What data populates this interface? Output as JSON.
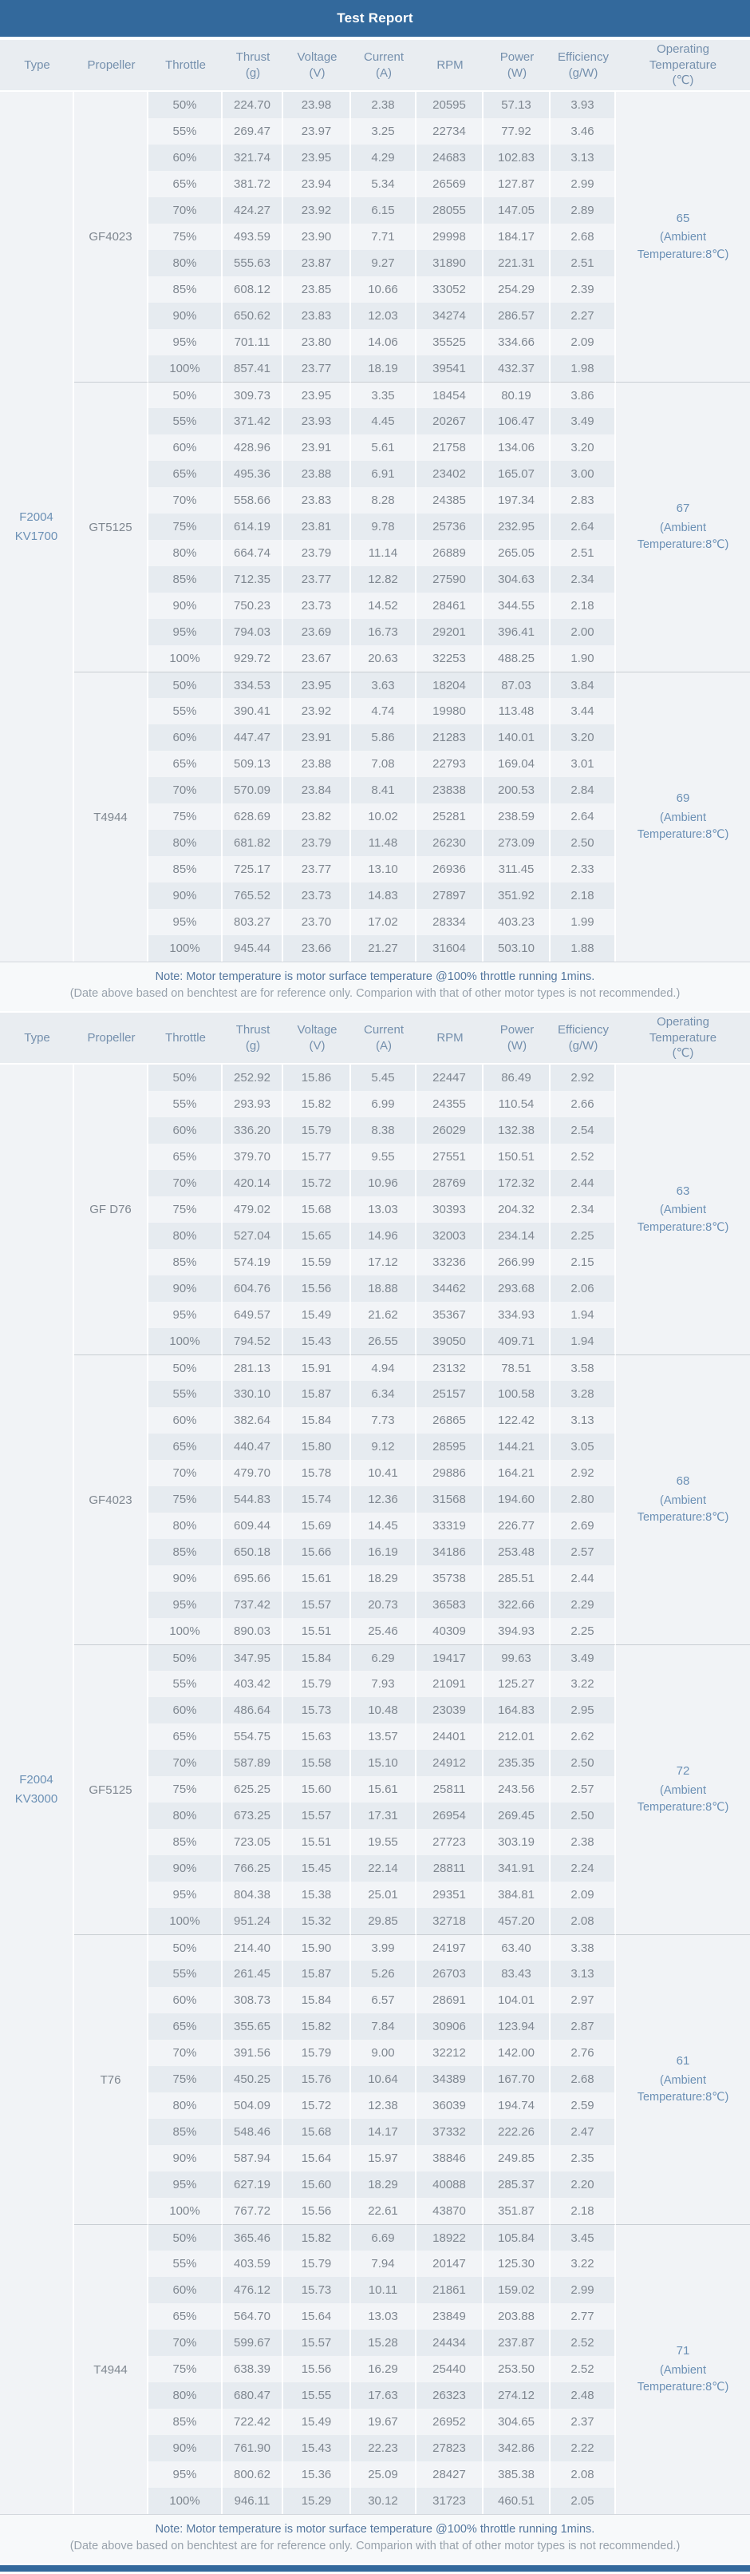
{
  "title": "Test Report",
  "colors": {
    "header_blue": "#33699c",
    "column_header_bg": "#e9edf1",
    "column_header_text": "#7590ad",
    "row_dark": "#e6ebf0",
    "row_light": "#f2f4f7",
    "merged_cell_bg": "#f1f3f6",
    "data_text": "#7f8790",
    "accent_text": "#6b90b5",
    "note_text": "#54779e"
  },
  "columns": [
    "Type",
    "Propeller",
    "Throttle",
    "Thrust\n(g)",
    "Voltage\n(V)",
    "Current\n(A)",
    "RPM",
    "Power\n(W)",
    "Efficiency\n(g/W)",
    "Operating\nTemperature\n(℃)"
  ],
  "note": {
    "line1": "Note: Motor temperature is motor surface temperature @100% throttle running 1mins.",
    "line2": "(Date above based on benchtest are for reference only. Comparion with that of other motor types is not recommended.)"
  },
  "tables": [
    {
      "type": "F2004 KV1700",
      "groups": [
        {
          "propeller": "GF4023",
          "temperature": "65",
          "ambient": "(Ambient Temperature:8℃)",
          "rows": [
            [
              "50%",
              "224.70",
              "23.98",
              "2.38",
              "20595",
              "57.13",
              "3.93"
            ],
            [
              "55%",
              "269.47",
              "23.97",
              "3.25",
              "22734",
              "77.92",
              "3.46"
            ],
            [
              "60%",
              "321.74",
              "23.95",
              "4.29",
              "24683",
              "102.83",
              "3.13"
            ],
            [
              "65%",
              "381.72",
              "23.94",
              "5.34",
              "26569",
              "127.87",
              "2.99"
            ],
            [
              "70%",
              "424.27",
              "23.92",
              "6.15",
              "28055",
              "147.05",
              "2.89"
            ],
            [
              "75%",
              "493.59",
              "23.90",
              "7.71",
              "29998",
              "184.17",
              "2.68"
            ],
            [
              "80%",
              "555.63",
              "23.87",
              "9.27",
              "31890",
              "221.31",
              "2.51"
            ],
            [
              "85%",
              "608.12",
              "23.85",
              "10.66",
              "33052",
              "254.29",
              "2.39"
            ],
            [
              "90%",
              "650.62",
              "23.83",
              "12.03",
              "34274",
              "286.57",
              "2.27"
            ],
            [
              "95%",
              "701.11",
              "23.80",
              "14.06",
              "35525",
              "334.66",
              "2.09"
            ],
            [
              "100%",
              "857.41",
              "23.77",
              "18.19",
              "39541",
              "432.37",
              "1.98"
            ]
          ]
        },
        {
          "propeller": "GT5125",
          "temperature": "67",
          "ambient": "(Ambient Temperature:8℃)",
          "rows": [
            [
              "50%",
              "309.73",
              "23.95",
              "3.35",
              "18454",
              "80.19",
              "3.86"
            ],
            [
              "55%",
              "371.42",
              "23.93",
              "4.45",
              "20267",
              "106.47",
              "3.49"
            ],
            [
              "60%",
              "428.96",
              "23.91",
              "5.61",
              "21758",
              "134.06",
              "3.20"
            ],
            [
              "65%",
              "495.36",
              "23.88",
              "6.91",
              "23402",
              "165.07",
              "3.00"
            ],
            [
              "70%",
              "558.66",
              "23.83",
              "8.28",
              "24385",
              "197.34",
              "2.83"
            ],
            [
              "75%",
              "614.19",
              "23.81",
              "9.78",
              "25736",
              "232.95",
              "2.64"
            ],
            [
              "80%",
              "664.74",
              "23.79",
              "11.14",
              "26889",
              "265.05",
              "2.51"
            ],
            [
              "85%",
              "712.35",
              "23.77",
              "12.82",
              "27590",
              "304.63",
              "2.34"
            ],
            [
              "90%",
              "750.23",
              "23.73",
              "14.52",
              "28461",
              "344.55",
              "2.18"
            ],
            [
              "95%",
              "794.03",
              "23.69",
              "16.73",
              "29201",
              "396.41",
              "2.00"
            ],
            [
              "100%",
              "929.72",
              "23.67",
              "20.63",
              "32253",
              "488.25",
              "1.90"
            ]
          ]
        },
        {
          "propeller": "T4944",
          "temperature": "69",
          "ambient": "(Ambient Temperature:8℃)",
          "rows": [
            [
              "50%",
              "334.53",
              "23.95",
              "3.63",
              "18204",
              "87.03",
              "3.84"
            ],
            [
              "55%",
              "390.41",
              "23.92",
              "4.74",
              "19980",
              "113.48",
              "3.44"
            ],
            [
              "60%",
              "447.47",
              "23.91",
              "5.86",
              "21283",
              "140.01",
              "3.20"
            ],
            [
              "65%",
              "509.13",
              "23.88",
              "7.08",
              "22793",
              "169.04",
              "3.01"
            ],
            [
              "70%",
              "570.09",
              "23.84",
              "8.41",
              "23838",
              "200.53",
              "2.84"
            ],
            [
              "75%",
              "628.69",
              "23.82",
              "10.02",
              "25281",
              "238.59",
              "2.64"
            ],
            [
              "80%",
              "681.82",
              "23.79",
              "11.48",
              "26230",
              "273.09",
              "2.50"
            ],
            [
              "85%",
              "725.17",
              "23.77",
              "13.10",
              "26936",
              "311.45",
              "2.33"
            ],
            [
              "90%",
              "765.52",
              "23.73",
              "14.83",
              "27897",
              "351.92",
              "2.18"
            ],
            [
              "95%",
              "803.27",
              "23.70",
              "17.02",
              "28334",
              "403.23",
              "1.99"
            ],
            [
              "100%",
              "945.44",
              "23.66",
              "21.27",
              "31604",
              "503.10",
              "1.88"
            ]
          ]
        }
      ]
    },
    {
      "type": "F2004 KV3000",
      "groups": [
        {
          "propeller": "GF D76",
          "temperature": "63",
          "ambient": "(Ambient Temperature:8℃)",
          "rows": [
            [
              "50%",
              "252.92",
              "15.86",
              "5.45",
              "22447",
              "86.49",
              "2.92"
            ],
            [
              "55%",
              "293.93",
              "15.82",
              "6.99",
              "24355",
              "110.54",
              "2.66"
            ],
            [
              "60%",
              "336.20",
              "15.79",
              "8.38",
              "26029",
              "132.38",
              "2.54"
            ],
            [
              "65%",
              "379.70",
              "15.77",
              "9.55",
              "27551",
              "150.51",
              "2.52"
            ],
            [
              "70%",
              "420.14",
              "15.72",
              "10.96",
              "28769",
              "172.32",
              "2.44"
            ],
            [
              "75%",
              "479.02",
              "15.68",
              "13.03",
              "30393",
              "204.32",
              "2.34"
            ],
            [
              "80%",
              "527.04",
              "15.65",
              "14.96",
              "32003",
              "234.14",
              "2.25"
            ],
            [
              "85%",
              "574.19",
              "15.59",
              "17.12",
              "33236",
              "266.99",
              "2.15"
            ],
            [
              "90%",
              "604.76",
              "15.56",
              "18.88",
              "34462",
              "293.68",
              "2.06"
            ],
            [
              "95%",
              "649.57",
              "15.49",
              "21.62",
              "35367",
              "334.93",
              "1.94"
            ],
            [
              "100%",
              "794.52",
              "15.43",
              "26.55",
              "39050",
              "409.71",
              "1.94"
            ]
          ]
        },
        {
          "propeller": "GF4023",
          "temperature": "68",
          "ambient": "(Ambient Temperature:8℃)",
          "rows": [
            [
              "50%",
              "281.13",
              "15.91",
              "4.94",
              "23132",
              "78.51",
              "3.58"
            ],
            [
              "55%",
              "330.10",
              "15.87",
              "6.34",
              "25157",
              "100.58",
              "3.28"
            ],
            [
              "60%",
              "382.64",
              "15.84",
              "7.73",
              "26865",
              "122.42",
              "3.13"
            ],
            [
              "65%",
              "440.47",
              "15.80",
              "9.12",
              "28595",
              "144.21",
              "3.05"
            ],
            [
              "70%",
              "479.70",
              "15.78",
              "10.41",
              "29886",
              "164.21",
              "2.92"
            ],
            [
              "75%",
              "544.83",
              "15.74",
              "12.36",
              "31568",
              "194.60",
              "2.80"
            ],
            [
              "80%",
              "609.44",
              "15.69",
              "14.45",
              "33319",
              "226.77",
              "2.69"
            ],
            [
              "85%",
              "650.18",
              "15.66",
              "16.19",
              "34186",
              "253.48",
              "2.57"
            ],
            [
              "90%",
              "695.66",
              "15.61",
              "18.29",
              "35738",
              "285.51",
              "2.44"
            ],
            [
              "95%",
              "737.42",
              "15.57",
              "20.73",
              "36583",
              "322.66",
              "2.29"
            ],
            [
              "100%",
              "890.03",
              "15.51",
              "25.46",
              "40309",
              "394.93",
              "2.25"
            ]
          ]
        },
        {
          "propeller": "GF5125",
          "temperature": "72",
          "ambient": "(Ambient Temperature:8℃)",
          "rows": [
            [
              "50%",
              "347.95",
              "15.84",
              "6.29",
              "19417",
              "99.63",
              "3.49"
            ],
            [
              "55%",
              "403.42",
              "15.79",
              "7.93",
              "21091",
              "125.27",
              "3.22"
            ],
            [
              "60%",
              "486.64",
              "15.73",
              "10.48",
              "23039",
              "164.83",
              "2.95"
            ],
            [
              "65%",
              "554.75",
              "15.63",
              "13.57",
              "24401",
              "212.01",
              "2.62"
            ],
            [
              "70%",
              "587.89",
              "15.58",
              "15.10",
              "24912",
              "235.35",
              "2.50"
            ],
            [
              "75%",
              "625.25",
              "15.60",
              "15.61",
              "25811",
              "243.56",
              "2.57"
            ],
            [
              "80%",
              "673.25",
              "15.57",
              "17.31",
              "26954",
              "269.45",
              "2.50"
            ],
            [
              "85%",
              "723.05",
              "15.51",
              "19.55",
              "27723",
              "303.19",
              "2.38"
            ],
            [
              "90%",
              "766.25",
              "15.45",
              "22.14",
              "28811",
              "341.91",
              "2.24"
            ],
            [
              "95%",
              "804.38",
              "15.38",
              "25.01",
              "29351",
              "384.81",
              "2.09"
            ],
            [
              "100%",
              "951.24",
              "15.32",
              "29.85",
              "32718",
              "457.20",
              "2.08"
            ]
          ]
        },
        {
          "propeller": "T76",
          "temperature": "61",
          "ambient": "(Ambient Temperature:8℃)",
          "rows": [
            [
              "50%",
              "214.40",
              "15.90",
              "3.99",
              "24197",
              "63.40",
              "3.38"
            ],
            [
              "55%",
              "261.45",
              "15.87",
              "5.26",
              "26703",
              "83.43",
              "3.13"
            ],
            [
              "60%",
              "308.73",
              "15.84",
              "6.57",
              "28691",
              "104.01",
              "2.97"
            ],
            [
              "65%",
              "355.65",
              "15.82",
              "7.84",
              "30906",
              "123.94",
              "2.87"
            ],
            [
              "70%",
              "391.56",
              "15.79",
              "9.00",
              "32212",
              "142.00",
              "2.76"
            ],
            [
              "75%",
              "450.25",
              "15.76",
              "10.64",
              "34389",
              "167.70",
              "2.68"
            ],
            [
              "80%",
              "504.09",
              "15.72",
              "12.38",
              "36039",
              "194.74",
              "2.59"
            ],
            [
              "85%",
              "548.46",
              "15.68",
              "14.17",
              "37332",
              "222.26",
              "2.47"
            ],
            [
              "90%",
              "587.94",
              "15.64",
              "15.97",
              "38846",
              "249.85",
              "2.35"
            ],
            [
              "95%",
              "627.19",
              "15.60",
              "18.29",
              "40088",
              "285.37",
              "2.20"
            ],
            [
              "100%",
              "767.72",
              "15.56",
              "22.61",
              "43870",
              "351.87",
              "2.18"
            ]
          ]
        },
        {
          "propeller": "T4944",
          "temperature": "71",
          "ambient": "(Ambient Temperature:8℃)",
          "rows": [
            [
              "50%",
              "365.46",
              "15.82",
              "6.69",
              "18922",
              "105.84",
              "3.45"
            ],
            [
              "55%",
              "403.59",
              "15.79",
              "7.94",
              "20147",
              "125.30",
              "3.22"
            ],
            [
              "60%",
              "476.12",
              "15.73",
              "10.11",
              "21861",
              "159.02",
              "2.99"
            ],
            [
              "65%",
              "564.70",
              "15.64",
              "13.03",
              "23849",
              "203.88",
              "2.77"
            ],
            [
              "70%",
              "599.67",
              "15.57",
              "15.28",
              "24434",
              "237.87",
              "2.52"
            ],
            [
              "75%",
              "638.39",
              "15.56",
              "16.29",
              "25440",
              "253.50",
              "2.52"
            ],
            [
              "80%",
              "680.47",
              "15.55",
              "17.63",
              "26323",
              "274.12",
              "2.48"
            ],
            [
              "85%",
              "722.42",
              "15.49",
              "19.67",
              "26952",
              "304.65",
              "2.37"
            ],
            [
              "90%",
              "761.90",
              "15.43",
              "22.23",
              "27823",
              "342.86",
              "2.22"
            ],
            [
              "95%",
              "800.62",
              "15.36",
              "25.09",
              "28427",
              "385.38",
              "2.08"
            ],
            [
              "100%",
              "946.11",
              "15.29",
              "30.12",
              "31723",
              "460.51",
              "2.05"
            ]
          ]
        }
      ]
    }
  ]
}
